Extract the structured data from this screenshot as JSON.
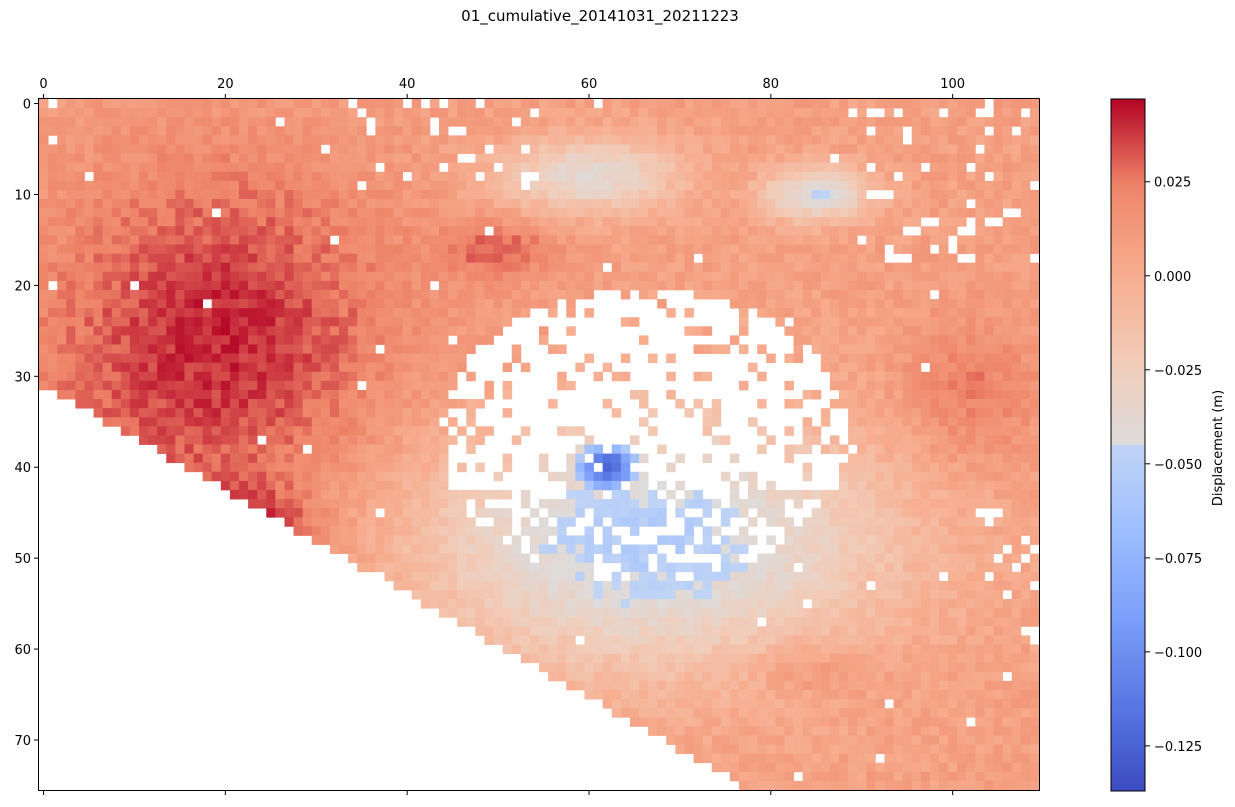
{
  "chart_data": {
    "type": "heatmap",
    "title": "01_cumulative_20141031_20211223",
    "x_axis": {
      "position": "top",
      "range": [
        -0.5,
        109.5
      ],
      "ticks": [
        0,
        20,
        40,
        60,
        80,
        100
      ],
      "tick_labels": [
        "0",
        "20",
        "40",
        "60",
        "80",
        "100"
      ]
    },
    "y_axis": {
      "inverted": true,
      "range": [
        75.5,
        -0.5
      ],
      "ticks": [
        0,
        10,
        20,
        30,
        40,
        50,
        60,
        70
      ],
      "tick_labels": [
        "0",
        "10",
        "20",
        "30",
        "40",
        "50",
        "60",
        "70"
      ]
    },
    "grid": {
      "cols": 110,
      "rows": 76
    },
    "colormap": "coolwarm",
    "colorbar": {
      "label": "Displacement (m)",
      "range": [
        -0.137,
        0.047
      ],
      "ticks": [
        0.025,
        0.0,
        -0.025,
        -0.05,
        -0.075,
        -0.1,
        -0.125
      ],
      "tick_labels": [
        "0.025",
        "0.000",
        "−0.025",
        "−0.050",
        "−0.075",
        "−0.100",
        "−0.125"
      ]
    },
    "features": [
      {
        "kind": "uplift",
        "value": 0.032,
        "center": [
          20,
          24
        ],
        "spread": [
          18,
          18
        ]
      },
      {
        "kind": "uplift",
        "value": 0.04,
        "center": [
          23,
          47
        ],
        "spread": [
          6,
          4
        ]
      },
      {
        "kind": "uplift",
        "value": 0.03,
        "center": [
          50,
          16
        ],
        "spread": [
          6,
          3
        ]
      },
      {
        "kind": "uplift",
        "value": 0.026,
        "center": [
          102,
          32
        ],
        "spread": [
          8,
          8
        ]
      },
      {
        "kind": "uplift",
        "value": 0.022,
        "center": [
          85,
          62
        ],
        "spread": [
          8,
          3
        ]
      },
      {
        "kind": "neutral",
        "value": -0.04,
        "center": [
          60,
          8
        ],
        "spread": [
          10,
          4
        ]
      },
      {
        "kind": "neutral",
        "value": -0.045,
        "center": [
          85,
          10
        ],
        "spread": [
          6,
          3
        ]
      },
      {
        "kind": "subsidence",
        "value": -0.055,
        "center": [
          66,
          48
        ],
        "spread": [
          26,
          14
        ]
      },
      {
        "kind": "subsidence",
        "value": -0.13,
        "center": [
          62,
          40
        ],
        "spread": [
          4,
          3
        ]
      }
    ],
    "no_data_regions": [
      "lower-left triangle below the diagonal edge",
      "central hole around rows 21-52, cols 43-90",
      "scattered isolated pixels"
    ]
  }
}
